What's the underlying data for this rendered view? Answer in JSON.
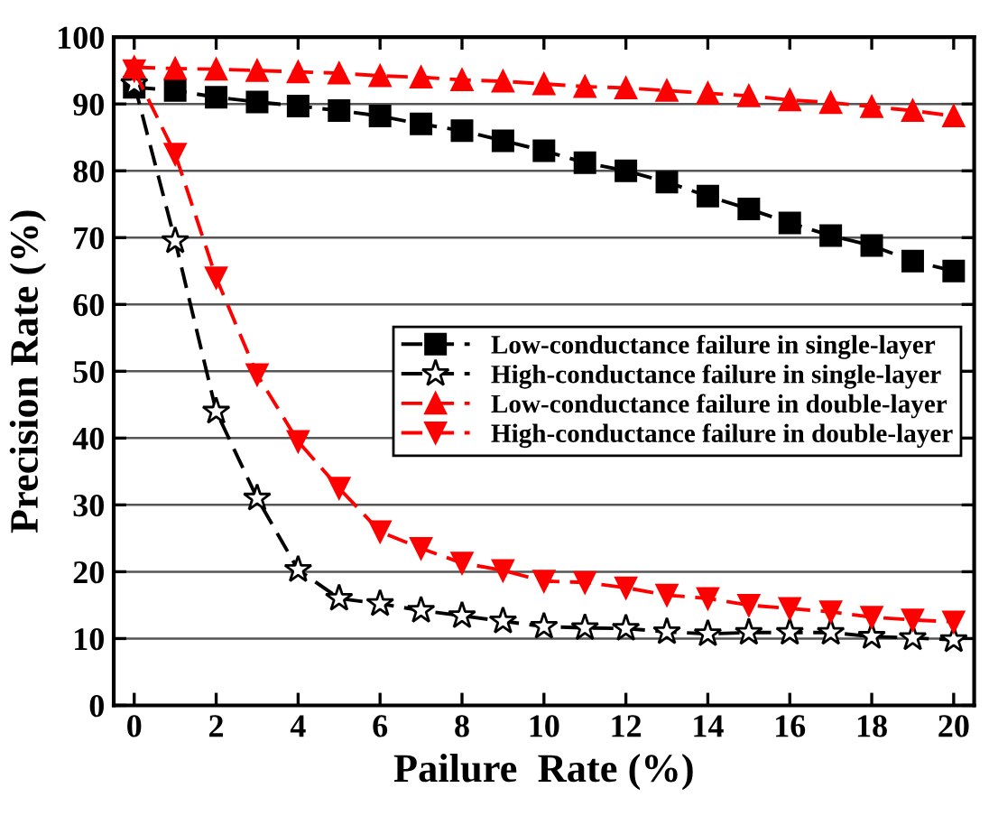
{
  "chart_data": {
    "type": "line",
    "xlabel": "Pailure  Rate (%)",
    "ylabel": "Precision Rate (%)",
    "x": [
      0,
      1,
      2,
      3,
      4,
      5,
      6,
      7,
      8,
      9,
      10,
      11,
      12,
      13,
      14,
      15,
      16,
      17,
      18,
      19,
      20
    ],
    "xlim": [
      -0.5,
      20.5
    ],
    "xticks": [
      0,
      2,
      4,
      6,
      8,
      10,
      12,
      14,
      16,
      18,
      20
    ],
    "ylim": [
      0,
      100
    ],
    "yticks": [
      0,
      10,
      20,
      30,
      40,
      50,
      60,
      70,
      80,
      90,
      100
    ],
    "grid": "y",
    "legend": "right",
    "line_style": "dashed",
    "series": [
      {
        "name": "Low-conductance failure in single-layer",
        "color": "#000000",
        "marker": "square",
        "values": [
          92.5,
          92,
          91,
          90.3,
          89.7,
          89,
          88.2,
          87,
          86,
          84.5,
          83,
          81.2,
          80,
          78.3,
          76.2,
          74.3,
          72.2,
          70.3,
          68.8,
          66.5,
          65
        ]
      },
      {
        "name": "High-conductance failure in single-layer",
        "color": "#000000",
        "marker": "star",
        "values": [
          93,
          69.5,
          44,
          31,
          20.3,
          16,
          15.2,
          14.2,
          13.4,
          12.6,
          11.8,
          11.6,
          11.5,
          11,
          10.7,
          10.9,
          10.9,
          10.9,
          10.3,
          10.1,
          9.8
        ]
      },
      {
        "name": "Low-conductance failure in double-layer",
        "color": "#ff0000",
        "marker": "triangle",
        "values": [
          95.5,
          95.3,
          95.2,
          95,
          94.8,
          94.6,
          94.2,
          94,
          93.6,
          93.4,
          93,
          92.6,
          92.4,
          92,
          91.6,
          91.2,
          90.6,
          90.2,
          89.6,
          89,
          88.2
        ]
      },
      {
        "name": "High-conductance failure in double-layer",
        "color": "#ff0000",
        "marker": "triangle_down",
        "values": [
          95,
          82.5,
          64,
          49.5,
          39.5,
          32.5,
          26,
          23.5,
          21.3,
          20.2,
          18.6,
          18.4,
          17.6,
          16.5,
          16,
          15,
          14.5,
          14,
          13.2,
          12.8,
          12.5
        ]
      }
    ]
  }
}
